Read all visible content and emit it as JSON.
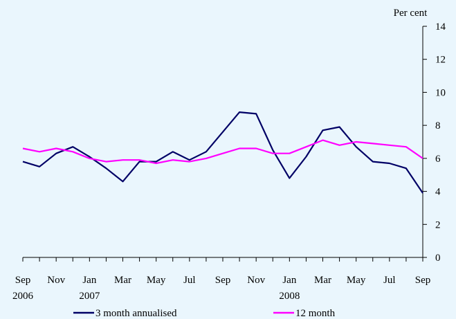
{
  "chart_data": {
    "type": "line",
    "ylabel": "Per cent",
    "ylim": [
      0,
      14
    ],
    "yticks": [
      0,
      2,
      4,
      6,
      8,
      10,
      12,
      14
    ],
    "x_tick_labels": [
      {
        "index": 0,
        "month": "Sep",
        "year": "2006"
      },
      {
        "index": 2,
        "month": "Nov",
        "year": ""
      },
      {
        "index": 4,
        "month": "Jan",
        "year": "2007"
      },
      {
        "index": 6,
        "month": "Mar",
        "year": ""
      },
      {
        "index": 8,
        "month": "May",
        "year": ""
      },
      {
        "index": 10,
        "month": "Jul",
        "year": ""
      },
      {
        "index": 12,
        "month": "Sep",
        "year": ""
      },
      {
        "index": 14,
        "month": "Nov",
        "year": ""
      },
      {
        "index": 16,
        "month": "Jan",
        "year": "2008"
      },
      {
        "index": 18,
        "month": "Mar",
        "year": ""
      },
      {
        "index": 20,
        "month": "May",
        "year": ""
      },
      {
        "index": 22,
        "month": "Jul",
        "year": ""
      },
      {
        "index": 24,
        "month": "Sep",
        "year": ""
      }
    ],
    "x": [
      "Sep 2006",
      "Oct 2006",
      "Nov 2006",
      "Dec 2006",
      "Jan 2007",
      "Feb 2007",
      "Mar 2007",
      "Apr 2007",
      "May 2007",
      "Jun 2007",
      "Jul 2007",
      "Aug 2007",
      "Sep 2007",
      "Oct 2007",
      "Nov 2007",
      "Dec 2007",
      "Jan 2008",
      "Feb 2008",
      "Mar 2008",
      "Apr 2008",
      "May 2008",
      "Jun 2008",
      "Jul 2008",
      "Aug 2008",
      "Sep 2008"
    ],
    "series": [
      {
        "name": "3 month annualised",
        "color": "#000066",
        "values": [
          5.8,
          5.5,
          6.3,
          6.7,
          6.1,
          5.4,
          4.6,
          5.8,
          5.8,
          6.4,
          5.9,
          6.4,
          7.6,
          8.8,
          8.7,
          6.5,
          4.8,
          6.1,
          7.7,
          7.9,
          6.7,
          5.8,
          5.7,
          5.4,
          3.9
        ]
      },
      {
        "name": "12 month",
        "color": "#ff00ff",
        "values": [
          6.6,
          6.4,
          6.6,
          6.4,
          6.0,
          5.8,
          5.9,
          5.9,
          5.7,
          5.9,
          5.8,
          6.0,
          6.3,
          6.6,
          6.6,
          6.3,
          6.3,
          6.7,
          7.1,
          6.8,
          7.0,
          6.9,
          6.8,
          6.7,
          6.0
        ]
      }
    ],
    "grid": false,
    "legend_position": "bottom"
  }
}
